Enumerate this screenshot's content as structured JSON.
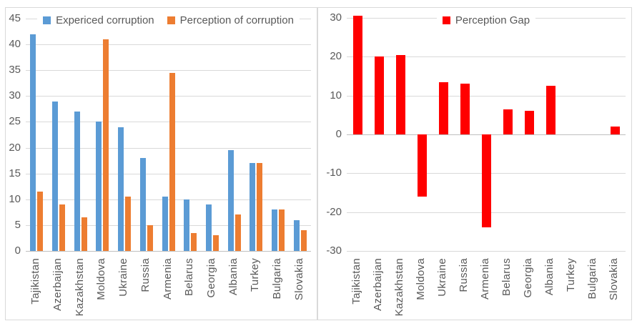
{
  "styles": {
    "background": "#FFFFFF",
    "panel_border": "#D9D9D9",
    "gridline_color": "#D9D9D9",
    "zero_axis_color": "#BFBFBF",
    "tick_text_color": "#595959",
    "series_blue": "#5B9BD5",
    "series_orange": "#ED7D31",
    "series_red": "#FF0000"
  },
  "chart_data": [
    {
      "type": "bar",
      "title": "",
      "xlabel": "",
      "ylabel": "",
      "categories": [
        "Tajikistan",
        "Azerbaijan",
        "Kazakhstan",
        "Moldova",
        "Ukraine",
        "Russia",
        "Armenia",
        "Belarus",
        "Georgia",
        "Albania",
        "Turkey",
        "Bulgaria",
        "Slovakia"
      ],
      "series": [
        {
          "name": "Expericed corruption",
          "color": "#5B9BD5",
          "values": [
            42,
            29,
            27,
            25,
            24,
            18,
            10.5,
            10,
            9,
            19.5,
            17,
            8,
            6
          ]
        },
        {
          "name": "Perception of corruption",
          "color": "#ED7D31",
          "values": [
            11.5,
            9,
            6.5,
            41,
            10.5,
            5,
            34.5,
            3.5,
            3,
            7,
            17,
            8,
            4
          ]
        }
      ],
      "ylim": [
        0,
        45
      ],
      "yticks": [
        45,
        40,
        35,
        30,
        25,
        20,
        15,
        10,
        5,
        0
      ],
      "grid": true,
      "legend_position": "top-center"
    },
    {
      "type": "bar",
      "title": "",
      "xlabel": "",
      "ylabel": "",
      "categories": [
        "Tajikistan",
        "Azerbaijan",
        "Kazakhstan",
        "Moldova",
        "Ukraine",
        "Russia",
        "Armenia",
        "Belarus",
        "Georgia",
        "Albania",
        "Turkey",
        "Bulgaria",
        "Slovakia"
      ],
      "series": [
        {
          "name": "Perception Gap",
          "color": "#FF0000",
          "values": [
            30.5,
            20,
            20.5,
            -16,
            13.5,
            13,
            -24,
            6.5,
            6,
            12.5,
            0,
            0,
            2
          ]
        }
      ],
      "ylim": [
        -30,
        30
      ],
      "yticks": [
        30,
        20,
        10,
        0,
        -10,
        -20,
        -30
      ],
      "grid": true,
      "legend_position": "top-center"
    }
  ]
}
